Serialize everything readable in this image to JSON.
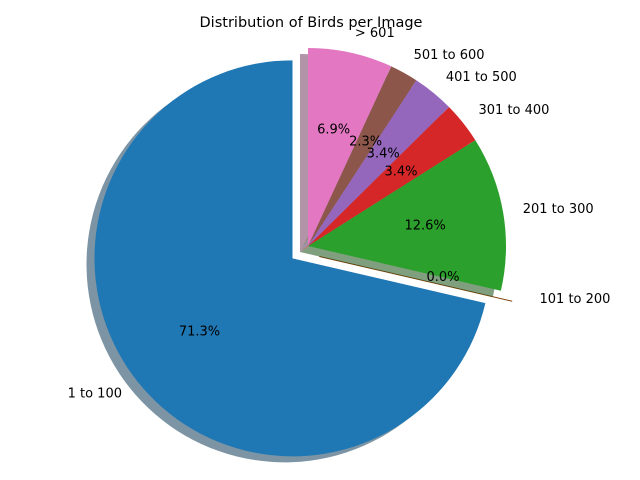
{
  "chart_data": {
    "type": "pie",
    "title": "Distribution of Birds per Image",
    "start_angle_deg": 90,
    "direction": "counterclockwise",
    "shadow": true,
    "slices": [
      {
        "label": "1 to 100",
        "value": 71.3,
        "pct_label": "71.3%",
        "color": "#1f77b4",
        "exploded": true
      },
      {
        "label": "101 to 200",
        "value": 0.0,
        "pct_label": "0.0%",
        "color": "#ff7f0e",
        "exploded": true
      },
      {
        "label": "201 to 300",
        "value": 12.6,
        "pct_label": "12.6%",
        "color": "#2ca02c",
        "exploded": false
      },
      {
        "label": "301 to 400",
        "value": 3.4,
        "pct_label": "3.4%",
        "color": "#d62728",
        "exploded": false
      },
      {
        "label": "401 to 500",
        "value": 3.4,
        "pct_label": "3.4%",
        "color": "#9467bd",
        "exploded": false
      },
      {
        "label": "501 to 600",
        "value": 2.3,
        "pct_label": "2.3%",
        "color": "#8c564b",
        "exploded": false
      },
      {
        "label": "> 601",
        "value": 6.9,
        "pct_label": "6.9%",
        "color": "#e377c2",
        "exploded": false
      }
    ]
  }
}
